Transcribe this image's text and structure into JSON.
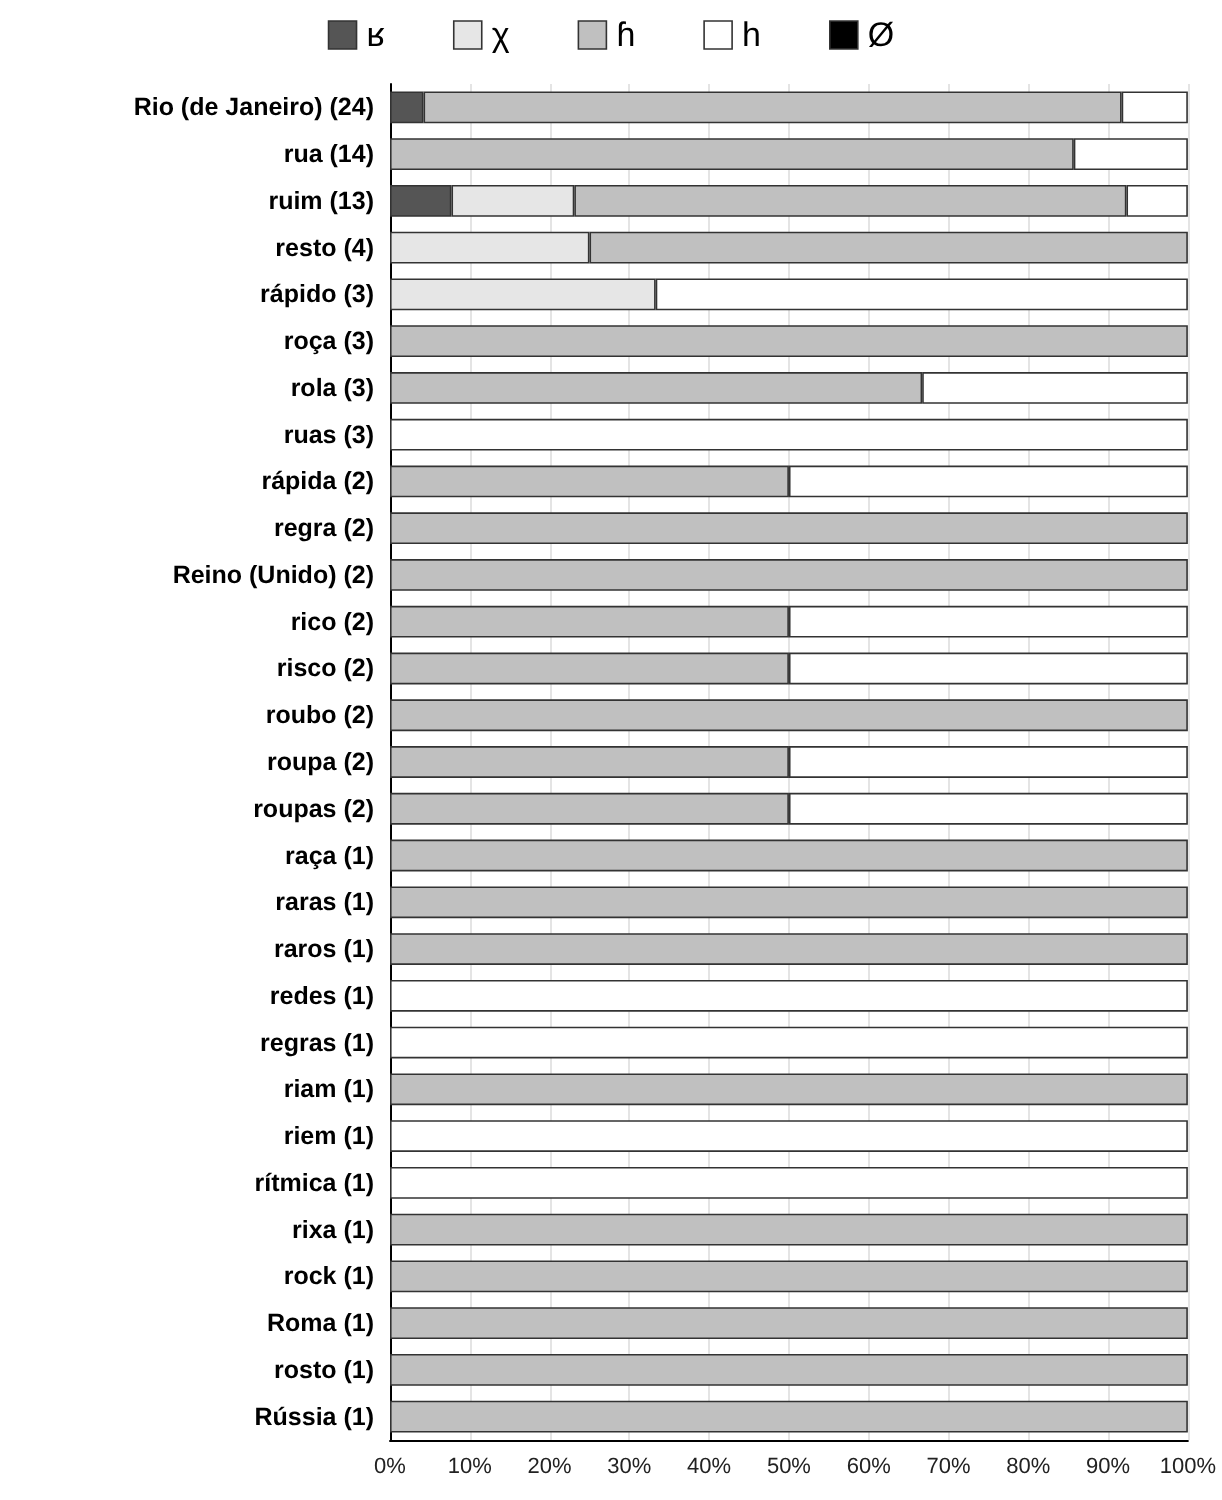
{
  "chart_data": {
    "type": "bar",
    "orientation": "horizontal",
    "stacked": true,
    "legend": "top",
    "grid": "x",
    "categories": [
      "Rio (de Janeiro) (24)",
      "rua (14)",
      "ruim (13)",
      "resto (4)",
      "rápido (3)",
      "roça (3)",
      "rola (3)",
      "ruas (3)",
      "rápida (2)",
      "regra (2)",
      "Reino (Unido) (2)",
      "rico (2)",
      "risco (2)",
      "roubo (2)",
      "roupa (2)",
      "roupas (2)",
      "raça (1)",
      "raras (1)",
      "raros (1)",
      "redes (1)",
      "regras (1)",
      "riam (1)",
      "riem (1)",
      "rítmica (1)",
      "rixa (1)",
      "rock (1)",
      "Roma (1)",
      "rosto (1)",
      "Rússia (1)"
    ],
    "series": [
      {
        "name": "ʁ",
        "color": "#555555",
        "values": [
          4.2,
          0,
          7.7,
          0,
          0,
          0,
          0,
          0,
          0,
          0,
          0,
          0,
          0,
          0,
          0,
          0,
          0,
          0,
          0,
          0,
          0,
          0,
          0,
          0,
          0,
          0,
          0,
          0,
          0
        ]
      },
      {
        "name": "χ",
        "color": "#e6e6e6",
        "values": [
          0,
          0,
          15.4,
          25,
          33.3,
          0,
          0,
          0,
          0,
          0,
          0,
          0,
          0,
          0,
          0,
          0,
          0,
          0,
          0,
          0,
          0,
          0,
          0,
          0,
          0,
          0,
          0,
          0,
          0
        ]
      },
      {
        "name": "ɦ",
        "color": "#c0c0c0",
        "values": [
          87.5,
          85.7,
          69.2,
          75,
          0,
          100,
          66.7,
          0,
          50,
          100,
          100,
          50,
          50,
          100,
          50,
          50,
          100,
          100,
          100,
          0,
          0,
          100,
          0,
          0,
          100,
          100,
          100,
          100,
          100
        ]
      },
      {
        "name": "h",
        "color": "#ffffff",
        "values": [
          8.3,
          14.3,
          7.7,
          0,
          66.7,
          0,
          33.3,
          100,
          50,
          0,
          0,
          50,
          50,
          0,
          50,
          50,
          0,
          0,
          0,
          100,
          100,
          0,
          100,
          100,
          0,
          0,
          0,
          0,
          0
        ]
      },
      {
        "name": "Ø",
        "color": "#000000",
        "values": [
          0,
          0,
          0,
          0,
          0,
          0,
          0,
          0,
          0,
          0,
          0,
          0,
          0,
          0,
          0,
          0,
          0,
          0,
          0,
          0,
          0,
          0,
          0,
          0,
          0,
          0,
          0,
          0,
          0
        ]
      }
    ],
    "xlim": [
      0,
      100
    ],
    "xticks": [
      {
        "value": 0,
        "label": "0%"
      },
      {
        "value": 10,
        "label": "10%"
      },
      {
        "value": 20,
        "label": "20%"
      },
      {
        "value": 30,
        "label": "30%"
      },
      {
        "value": 40,
        "label": "40%"
      },
      {
        "value": 50,
        "label": "50%"
      },
      {
        "value": 60,
        "label": "60%"
      },
      {
        "value": 70,
        "label": "70%"
      },
      {
        "value": 80,
        "label": "80%"
      },
      {
        "value": 90,
        "label": "90%"
      },
      {
        "value": 100,
        "label": "100%"
      }
    ]
  }
}
